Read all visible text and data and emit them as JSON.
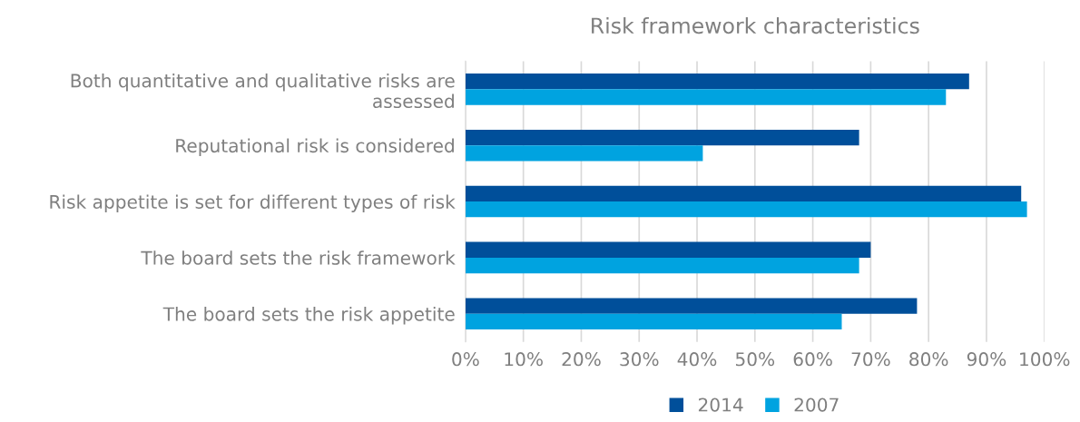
{
  "chart_data": {
    "type": "bar",
    "orientation": "horizontal",
    "title": "Risk framework characteristics",
    "categories": [
      "Both quantitative and qualitative risks are assessed",
      "Reputational risk is considered",
      "Risk appetite is set for different types of risk",
      "The board sets the risk framework",
      "The board sets the risk appetite"
    ],
    "series": [
      {
        "name": "2014",
        "color": "#004f9a",
        "values": [
          87,
          68,
          96,
          70,
          78
        ]
      },
      {
        "name": "2007",
        "color": "#00a3e0",
        "values": [
          83,
          41,
          97,
          68,
          65
        ]
      }
    ],
    "xlim": [
      0,
      100
    ],
    "xticks": [
      {
        "value": 0,
        "label": "0%"
      },
      {
        "value": 10,
        "label": "10%"
      },
      {
        "value": 20,
        "label": "20%"
      },
      {
        "value": 30,
        "label": "30%"
      },
      {
        "value": 40,
        "label": "40%"
      },
      {
        "value": 50,
        "label": "50%"
      },
      {
        "value": 60,
        "label": "60%"
      },
      {
        "value": 70,
        "label": "70%"
      },
      {
        "value": 80,
        "label": "80%"
      },
      {
        "value": 90,
        "label": "90%"
      },
      {
        "value": 100,
        "label": "100%"
      }
    ],
    "grid": "x",
    "legend": "bottom"
  }
}
